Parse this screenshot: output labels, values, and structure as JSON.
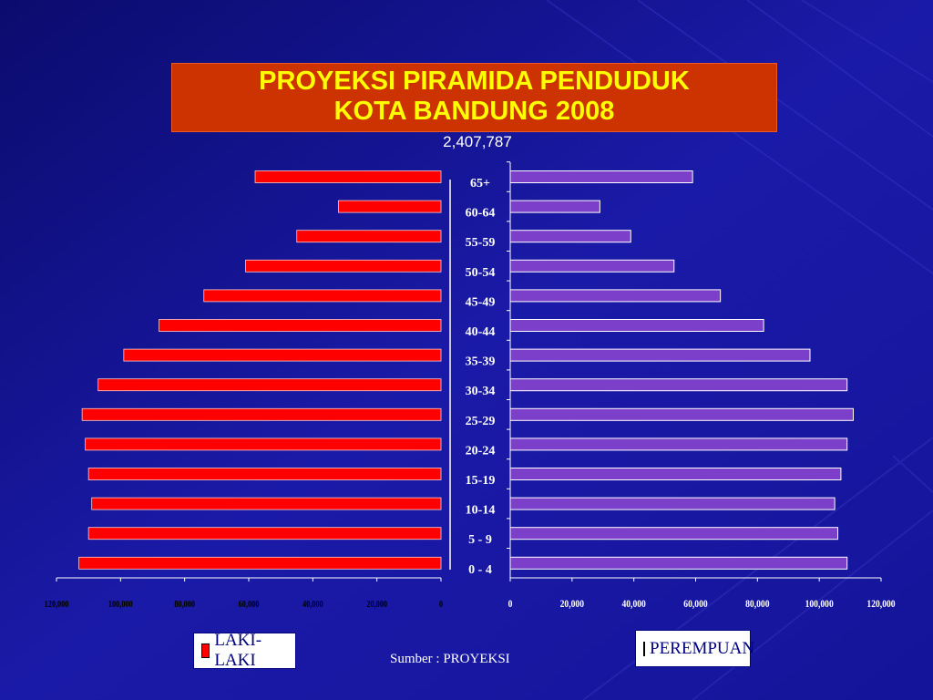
{
  "slide": {
    "title_line1": "PROYEKSI PIRAMIDA PENDUDUK",
    "title_line2": "KOTA BANDUNG 2008",
    "total": "2,407,787",
    "source": "Sumber : PROYEKSI"
  },
  "colors": {
    "background": "#1a1aa8",
    "male": "#ff0000",
    "female": "#7b3fc9",
    "title_bg": "#cc3300",
    "title_text": "#ffff00"
  },
  "chart_data": {
    "type": "bar",
    "orientation": "horizontal-pyramid",
    "categories": [
      "65+",
      "60-64",
      "55-59",
      "50-54",
      "45-49",
      "40-44",
      "35-39",
      "30-34",
      "25-29",
      "20-24",
      "15-19",
      "10-14",
      "5 - 9",
      "0 - 4"
    ],
    "series": [
      {
        "name": "LAKI-LAKI",
        "values": [
          58000,
          32000,
          45000,
          61000,
          74000,
          88000,
          99000,
          107000,
          112000,
          111000,
          110000,
          109000,
          110000,
          113000
        ]
      },
      {
        "name": "PEREMPUAN",
        "values": [
          59000,
          29000,
          39000,
          53000,
          68000,
          82000,
          97000,
          109000,
          111000,
          109000,
          107000,
          105000,
          106000,
          109000
        ]
      }
    ],
    "left_axis_ticks": [
      "120,000",
      "100,000",
      "80,000",
      "60,000",
      "40,000",
      "20,000",
      "0"
    ],
    "right_axis_ticks": [
      "0",
      "20,000",
      "40,000",
      "60,000",
      "80,000",
      "100,000",
      "120,000"
    ],
    "xlim": [
      0,
      120000
    ]
  }
}
